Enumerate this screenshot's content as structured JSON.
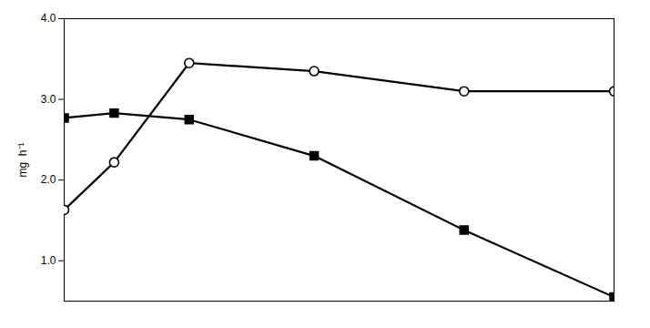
{
  "chart_data": {
    "type": "line",
    "ylabel": "mg  h⁻¹",
    "x": [
      0,
      2,
      5,
      10,
      16,
      22
    ],
    "series": [
      {
        "color": "#000000",
        "marker": "square",
        "values": [
          2.77,
          2.83,
          2.75,
          2.3,
          1.38,
          0.55
        ]
      },
      {
        "color": "#000000",
        "marker": "open-circle",
        "values": [
          1.63,
          2.22,
          3.45,
          3.35,
          3.1,
          3.1
        ]
      }
    ],
    "xlim": [
      0,
      22
    ],
    "ylim": [
      0.5,
      4.0
    ],
    "yticks": [
      1,
      2,
      3,
      4
    ],
    "tick_labels": "y",
    "grid": false
  }
}
